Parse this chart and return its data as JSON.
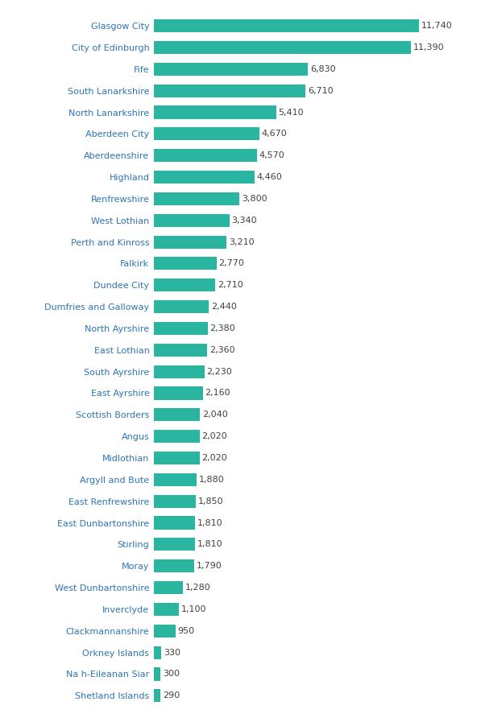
{
  "categories": [
    "Glasgow City",
    "City of Edinburgh",
    "Fife",
    "South Lanarkshire",
    "North Lanarkshire",
    "Aberdeen City",
    "Aberdeenshire",
    "Highland",
    "Renfrewshire",
    "West Lothian",
    "Perth and Kinross",
    "Falkirk",
    "Dundee City",
    "Dumfries and Galloway",
    "North Ayrshire",
    "East Lothian",
    "South Ayrshire",
    "East Ayrshire",
    "Scottish Borders",
    "Angus",
    "Midlothian",
    "Argyll and Bute",
    "East Renfrewshire",
    "East Dunbartonshire",
    "Stirling",
    "Moray",
    "West Dunbartonshire",
    "Inverclyde",
    "Clackmannanshire",
    "Orkney Islands",
    "Na h-Eileanan Siar",
    "Shetland Islands"
  ],
  "values": [
    11740,
    11390,
    6830,
    6710,
    5410,
    4670,
    4570,
    4460,
    3800,
    3340,
    3210,
    2770,
    2710,
    2440,
    2380,
    2360,
    2230,
    2160,
    2040,
    2020,
    2020,
    1880,
    1850,
    1810,
    1810,
    1790,
    1280,
    1100,
    950,
    330,
    300,
    290
  ],
  "bar_color": "#2ab5a0",
  "label_color": "#2e75b6",
  "value_color": "#404040",
  "background_color": "#ffffff",
  "bar_height": 0.6,
  "value_fontsize": 8,
  "label_fontsize": 8
}
